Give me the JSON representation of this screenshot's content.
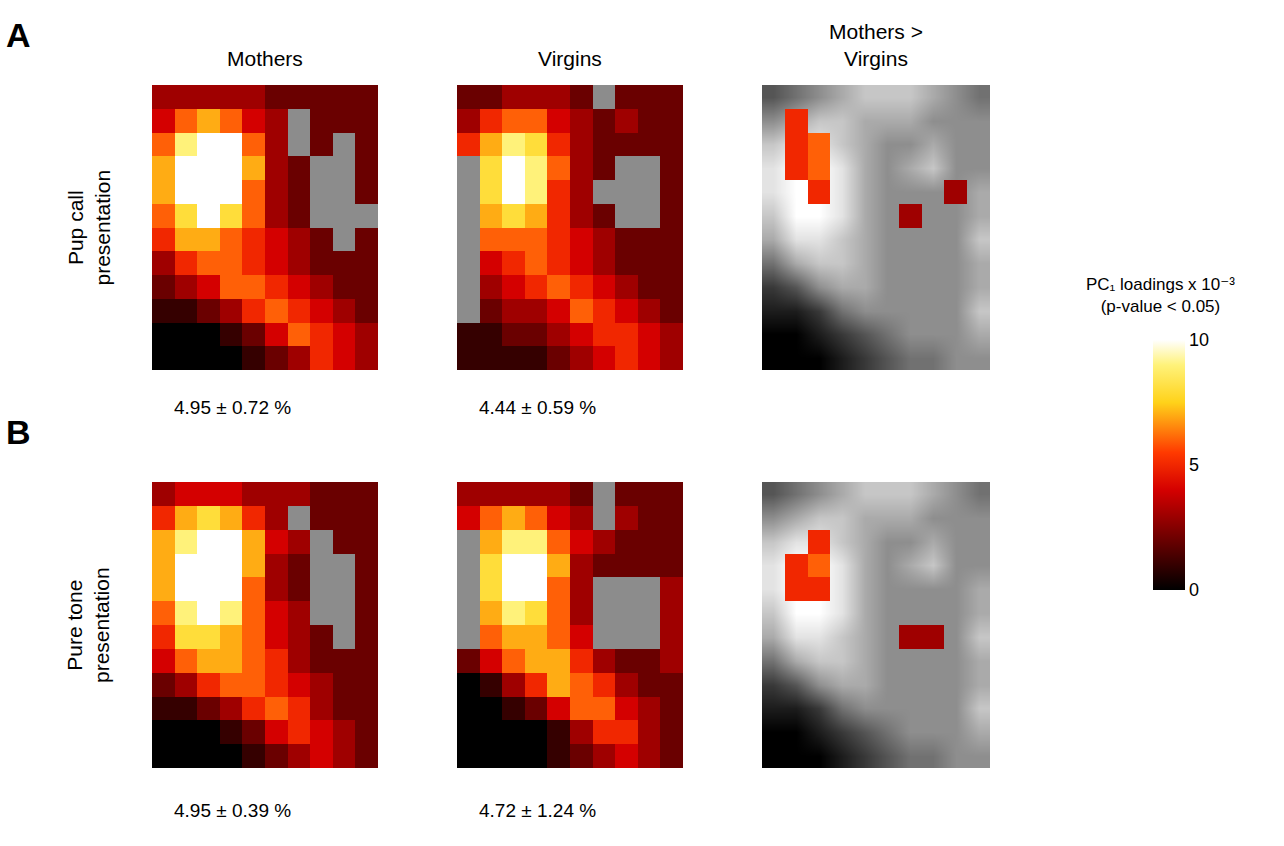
{
  "chart_data": {
    "type": "heatmap",
    "tick_labels": false,
    "columns": [
      "Mothers",
      "Virgins",
      "Mothers > Virgins"
    ],
    "rows": [
      {
        "letter": "A",
        "label": "Pup call presentation"
      },
      {
        "letter": "B",
        "label": "Pure tone presentation"
      }
    ],
    "colorbar": {
      "title": [
        "PC₁ loadings x 10⁻³",
        "(p-value < 0.05)"
      ],
      "zlim": [
        0,
        10
      ],
      "ticks": [
        0,
        5,
        10
      ]
    },
    "panels": [
      {
        "row": 0,
        "column": 0,
        "caption": "4.95 ± 0.72 %",
        "z": [
          [
            3,
            3,
            3,
            3,
            3,
            2,
            2,
            2,
            2,
            2
          ],
          [
            4,
            6,
            7,
            6,
            4,
            3,
            null,
            2,
            2,
            2
          ],
          [
            6,
            9,
            10,
            10,
            6,
            3,
            null,
            2,
            null,
            2
          ],
          [
            7,
            10,
            10,
            10,
            7,
            3,
            2,
            null,
            null,
            2
          ],
          [
            7,
            10,
            10,
            10,
            6,
            3,
            2,
            null,
            null,
            2
          ],
          [
            6,
            8,
            10,
            8,
            6,
            3,
            2,
            null,
            null,
            null
          ],
          [
            5,
            7,
            7,
            6,
            5,
            4,
            3,
            2,
            null,
            2
          ],
          [
            3,
            5,
            6,
            6,
            5,
            4,
            3,
            2,
            2,
            2
          ],
          [
            2,
            3,
            4,
            6,
            6,
            5,
            4,
            3,
            2,
            2
          ],
          [
            1,
            1,
            2,
            3,
            5,
            6,
            5,
            4,
            3,
            2
          ],
          [
            0,
            0,
            0,
            1,
            2,
            4,
            6,
            5,
            4,
            3
          ],
          [
            0,
            0,
            0,
            0,
            1,
            2,
            3,
            5,
            4,
            3
          ]
        ]
      },
      {
        "row": 0,
        "column": 1,
        "caption": "4.44 ± 0.59 %",
        "z": [
          [
            2,
            2,
            3,
            3,
            3,
            2,
            null,
            2,
            2,
            2
          ],
          [
            3,
            5,
            6,
            6,
            4,
            3,
            2,
            3,
            2,
            2
          ],
          [
            5,
            7,
            9,
            8,
            5,
            3,
            2,
            2,
            2,
            2
          ],
          [
            null,
            8,
            10,
            9,
            6,
            3,
            2,
            null,
            null,
            2
          ],
          [
            null,
            8,
            10,
            9,
            5,
            3,
            null,
            null,
            null,
            2
          ],
          [
            null,
            7,
            8,
            7,
            5,
            3,
            2,
            null,
            null,
            2
          ],
          [
            null,
            6,
            6,
            6,
            5,
            4,
            3,
            2,
            2,
            2
          ],
          [
            null,
            4,
            5,
            6,
            5,
            4,
            3,
            2,
            2,
            2
          ],
          [
            null,
            3,
            4,
            5,
            6,
            5,
            4,
            3,
            2,
            2
          ],
          [
            null,
            2,
            3,
            3,
            4,
            6,
            5,
            4,
            3,
            2
          ],
          [
            1,
            1,
            2,
            2,
            3,
            4,
            5,
            5,
            4,
            3
          ],
          [
            1,
            1,
            1,
            1,
            2,
            3,
            4,
            5,
            4,
            3
          ]
        ]
      },
      {
        "row": 0,
        "column": 2,
        "background": [
          [
            3,
            4,
            5,
            6,
            7,
            7,
            7,
            6,
            5,
            4
          ],
          [
            5,
            6,
            7,
            7,
            6,
            6,
            6,
            5,
            5,
            5
          ],
          [
            7,
            8,
            8,
            7,
            6,
            5,
            5,
            6,
            5,
            5
          ],
          [
            8,
            9,
            9,
            8,
            6,
            5,
            6,
            7,
            5,
            5
          ],
          [
            8,
            9,
            9,
            8,
            6,
            5,
            5,
            5,
            5,
            6
          ],
          [
            7,
            9,
            9,
            8,
            6,
            5,
            5,
            5,
            5,
            6
          ],
          [
            6,
            8,
            8,
            7,
            6,
            5,
            5,
            5,
            5,
            7
          ],
          [
            4,
            6,
            7,
            7,
            6,
            5,
            5,
            5,
            5,
            6
          ],
          [
            2,
            3,
            5,
            6,
            6,
            5,
            5,
            5,
            5,
            6
          ],
          [
            1,
            1,
            2,
            4,
            5,
            5,
            5,
            5,
            5,
            7
          ],
          [
            0,
            0,
            1,
            2,
            3,
            4,
            5,
            5,
            5,
            6
          ],
          [
            0,
            0,
            0,
            1,
            2,
            3,
            4,
            4,
            5,
            5
          ]
        ],
        "z": [
          [
            null,
            null,
            null,
            null,
            null,
            null,
            null,
            null,
            null,
            null
          ],
          [
            null,
            5,
            null,
            null,
            null,
            null,
            null,
            null,
            null,
            null
          ],
          [
            null,
            5,
            6,
            null,
            null,
            null,
            null,
            null,
            null,
            null
          ],
          [
            null,
            5,
            6,
            null,
            null,
            null,
            null,
            null,
            null,
            null
          ],
          [
            null,
            null,
            5,
            null,
            null,
            null,
            null,
            null,
            3,
            null
          ],
          [
            null,
            null,
            null,
            null,
            null,
            null,
            3,
            null,
            null,
            null
          ],
          [
            null,
            null,
            null,
            null,
            null,
            null,
            null,
            null,
            null,
            null
          ],
          [
            null,
            null,
            null,
            null,
            null,
            null,
            null,
            null,
            null,
            null
          ],
          [
            null,
            null,
            null,
            null,
            null,
            null,
            null,
            null,
            null,
            null
          ],
          [
            null,
            null,
            null,
            null,
            null,
            null,
            null,
            null,
            null,
            null
          ],
          [
            null,
            null,
            null,
            null,
            null,
            null,
            null,
            null,
            null,
            null
          ],
          [
            null,
            null,
            null,
            null,
            null,
            null,
            null,
            null,
            null,
            null
          ]
        ]
      },
      {
        "row": 1,
        "column": 0,
        "caption": "4.95 ± 0.39 %",
        "z": [
          [
            3,
            4,
            4,
            4,
            3,
            3,
            3,
            2,
            2,
            2
          ],
          [
            5,
            7,
            8,
            7,
            5,
            3,
            null,
            2,
            2,
            2
          ],
          [
            7,
            9,
            10,
            10,
            7,
            4,
            3,
            null,
            2,
            2
          ],
          [
            7,
            10,
            10,
            10,
            7,
            3,
            2,
            null,
            null,
            2
          ],
          [
            7,
            10,
            10,
            10,
            6,
            3,
            2,
            null,
            null,
            2
          ],
          [
            6,
            9,
            10,
            9,
            6,
            4,
            3,
            null,
            null,
            2
          ],
          [
            5,
            8,
            8,
            7,
            6,
            4,
            3,
            2,
            null,
            2
          ],
          [
            4,
            6,
            7,
            7,
            6,
            5,
            3,
            2,
            2,
            2
          ],
          [
            2,
            3,
            5,
            6,
            6,
            5,
            4,
            3,
            2,
            2
          ],
          [
            1,
            1,
            2,
            3,
            5,
            6,
            5,
            3,
            2,
            2
          ],
          [
            0,
            0,
            0,
            1,
            2,
            4,
            5,
            4,
            3,
            2
          ],
          [
            0,
            0,
            0,
            0,
            1,
            2,
            3,
            4,
            3,
            2
          ]
        ]
      },
      {
        "row": 1,
        "column": 1,
        "caption": "4.72 ± 1.24 %",
        "z": [
          [
            3,
            3,
            3,
            3,
            3,
            2,
            null,
            2,
            2,
            2
          ],
          [
            4,
            6,
            7,
            6,
            4,
            3,
            null,
            3,
            2,
            2
          ],
          [
            null,
            7,
            9,
            9,
            6,
            4,
            3,
            2,
            2,
            2
          ],
          [
            null,
            8,
            10,
            10,
            7,
            3,
            2,
            2,
            2,
            2
          ],
          [
            null,
            8,
            10,
            10,
            6,
            3,
            null,
            null,
            null,
            3
          ],
          [
            null,
            7,
            9,
            8,
            6,
            3,
            null,
            null,
            null,
            3
          ],
          [
            null,
            6,
            7,
            7,
            6,
            4,
            null,
            null,
            null,
            3
          ],
          [
            2,
            4,
            6,
            7,
            7,
            5,
            3,
            2,
            2,
            3
          ],
          [
            0,
            1,
            3,
            5,
            7,
            6,
            5,
            3,
            2,
            2
          ],
          [
            0,
            0,
            1,
            2,
            4,
            6,
            6,
            4,
            3,
            2
          ],
          [
            0,
            0,
            0,
            0,
            1,
            3,
            5,
            5,
            3,
            2
          ],
          [
            0,
            0,
            0,
            0,
            1,
            2,
            3,
            4,
            3,
            2
          ]
        ]
      },
      {
        "row": 1,
        "column": 2,
        "background": [
          [
            3,
            4,
            5,
            6,
            7,
            7,
            7,
            6,
            5,
            4
          ],
          [
            5,
            6,
            7,
            7,
            6,
            6,
            6,
            5,
            5,
            5
          ],
          [
            7,
            8,
            8,
            7,
            6,
            5,
            5,
            6,
            5,
            5
          ],
          [
            8,
            9,
            9,
            8,
            6,
            5,
            6,
            7,
            5,
            5
          ],
          [
            8,
            9,
            9,
            8,
            6,
            5,
            5,
            5,
            5,
            6
          ],
          [
            7,
            9,
            9,
            8,
            6,
            5,
            5,
            5,
            5,
            6
          ],
          [
            6,
            8,
            8,
            7,
            6,
            5,
            5,
            5,
            5,
            7
          ],
          [
            4,
            6,
            7,
            7,
            6,
            5,
            5,
            5,
            5,
            6
          ],
          [
            2,
            3,
            5,
            6,
            6,
            5,
            5,
            5,
            5,
            6
          ],
          [
            1,
            1,
            2,
            4,
            5,
            5,
            5,
            5,
            5,
            7
          ],
          [
            0,
            0,
            1,
            2,
            3,
            4,
            5,
            5,
            5,
            6
          ],
          [
            0,
            0,
            0,
            1,
            2,
            3,
            4,
            4,
            5,
            5
          ]
        ],
        "z": [
          [
            null,
            null,
            null,
            null,
            null,
            null,
            null,
            null,
            null,
            null
          ],
          [
            null,
            null,
            null,
            null,
            null,
            null,
            null,
            null,
            null,
            null
          ],
          [
            null,
            null,
            5,
            null,
            null,
            null,
            null,
            null,
            null,
            null
          ],
          [
            null,
            5,
            6,
            null,
            null,
            null,
            null,
            null,
            null,
            null
          ],
          [
            null,
            5,
            5,
            null,
            null,
            null,
            null,
            null,
            null,
            null
          ],
          [
            null,
            null,
            null,
            null,
            null,
            null,
            null,
            null,
            null,
            null
          ],
          [
            null,
            null,
            null,
            null,
            null,
            null,
            3,
            3,
            null,
            null
          ],
          [
            null,
            null,
            null,
            null,
            null,
            null,
            null,
            null,
            null,
            null
          ],
          [
            null,
            null,
            null,
            null,
            null,
            null,
            null,
            null,
            null,
            null
          ],
          [
            null,
            null,
            null,
            null,
            null,
            null,
            null,
            null,
            null,
            null
          ],
          [
            null,
            null,
            null,
            null,
            null,
            null,
            null,
            null,
            null,
            null
          ],
          [
            null,
            null,
            null,
            null,
            null,
            null,
            null,
            null,
            null,
            null
          ]
        ]
      }
    ]
  }
}
